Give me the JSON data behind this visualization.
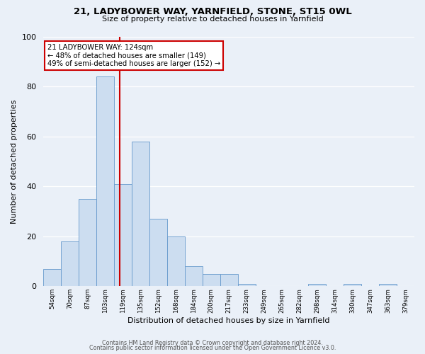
{
  "title": "21, LADYBOWER WAY, YARNFIELD, STONE, ST15 0WL",
  "subtitle": "Size of property relative to detached houses in Yarnfield",
  "xlabel": "Distribution of detached houses by size in Yarnfield",
  "ylabel": "Number of detached properties",
  "bin_labels": [
    "54sqm",
    "70sqm",
    "87sqm",
    "103sqm",
    "119sqm",
    "135sqm",
    "152sqm",
    "168sqm",
    "184sqm",
    "200sqm",
    "217sqm",
    "233sqm",
    "249sqm",
    "265sqm",
    "282sqm",
    "298sqm",
    "314sqm",
    "330sqm",
    "347sqm",
    "363sqm",
    "379sqm"
  ],
  "bar_values": [
    7,
    18,
    35,
    84,
    41,
    58,
    27,
    20,
    8,
    5,
    5,
    1,
    0,
    0,
    0,
    1,
    0,
    1,
    0,
    1,
    0
  ],
  "bar_color": "#ccddf0",
  "bar_edge_color": "#6699cc",
  "vline_color": "#cc0000",
  "ylim": [
    0,
    100
  ],
  "yticks": [
    0,
    20,
    40,
    60,
    80,
    100
  ],
  "annotation_box_text": "21 LADYBOWER WAY: 124sqm\n← 48% of detached houses are smaller (149)\n49% of semi-detached houses are larger (152) →",
  "annotation_box_color": "#cc0000",
  "footer_line1": "Contains HM Land Registry data © Crown copyright and database right 2024.",
  "footer_line2": "Contains public sector information licensed under the Open Government Licence v3.0.",
  "bg_color": "#eaf0f8",
  "plot_bg_color": "#eaf0f8",
  "vline_pos": 4.3125
}
